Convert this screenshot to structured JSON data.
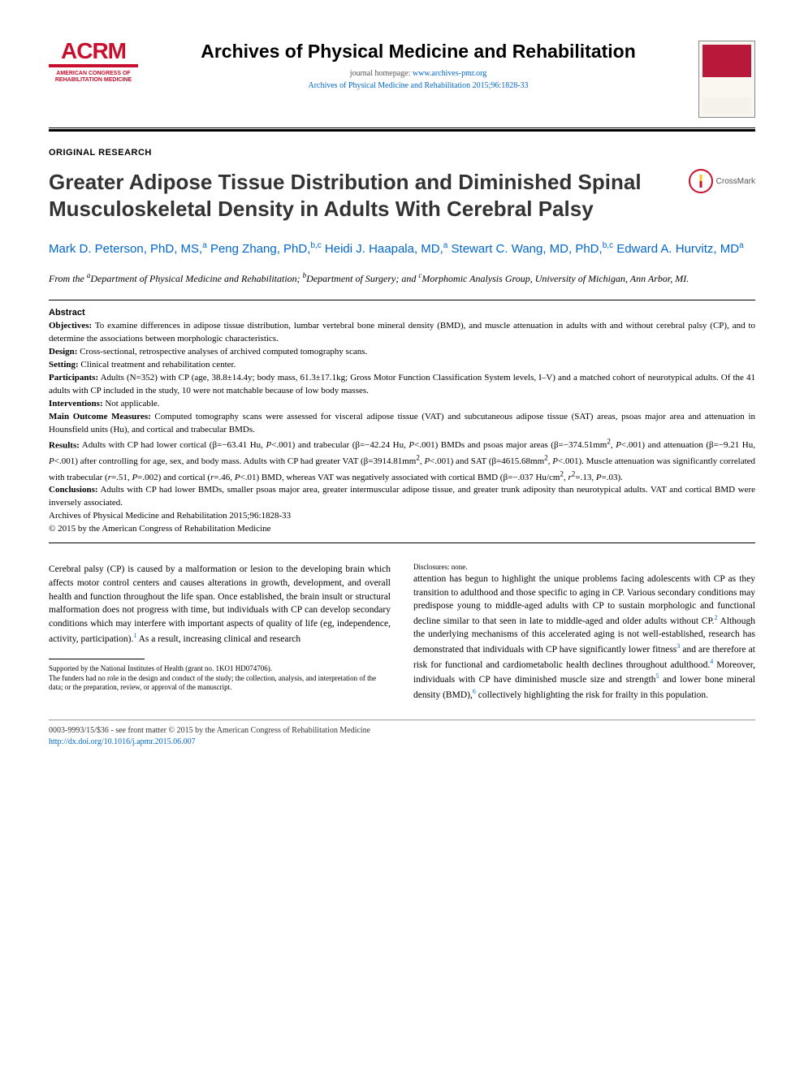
{
  "logo": {
    "mark": "ACRM",
    "sub1": "AMERICAN CONGRESS OF",
    "sub2": "REHABILITATION MEDICINE"
  },
  "journal": {
    "title": "Archives of Physical Medicine and Rehabilitation",
    "homepage_label": "journal homepage: ",
    "homepage_url": "www.archives-pmr.org",
    "citation": "Archives of Physical Medicine and Rehabilitation 2015;96:1828-33"
  },
  "article": {
    "type": "ORIGINAL RESEARCH",
    "title": "Greater Adipose Tissue Distribution and Diminished Spinal Musculoskeletal Density in Adults With Cerebral Palsy",
    "crossmark": "CrossMark"
  },
  "authors_html": "Mark D. Peterson, PhD, MS,<span class=\"sup\">a</span> Peng Zhang, PhD,<span class=\"sup\">b,c</span> Heidi J. Haapala, MD,<span class=\"sup\">a</span> Stewart C. Wang, MD, PhD,<span class=\"sup\">b,c</span> Edward A. Hurvitz, MD<span class=\"sup\">a</span>",
  "affiliations_html": "From the <span class=\"sup\">a</span>Department of Physical Medicine and Rehabilitation; <span class=\"sup\">b</span>Department of Surgery; and <span class=\"sup\">c</span>Morphomic Analysis Group, University of Michigan, Ann Arbor, MI.",
  "abstract": {
    "heading": "Abstract",
    "objectives_label": "Objectives:",
    "objectives": " To examine differences in adipose tissue distribution, lumbar vertebral bone mineral density (BMD), and muscle attenuation in adults with and without cerebral palsy (CP), and to determine the associations between morphologic characteristics.",
    "design_label": "Design:",
    "design": " Cross-sectional, retrospective analyses of archived computed tomography scans.",
    "setting_label": "Setting:",
    "setting": " Clinical treatment and rehabilitation center.",
    "participants_label": "Participants:",
    "participants": " Adults (N=352) with CP (age, 38.8±14.4y; body mass, 61.3±17.1kg; Gross Motor Function Classification System levels, I–V) and a matched cohort of neurotypical adults. Of the 41 adults with CP included in the study, 10 were not matchable because of low body masses.",
    "interventions_label": "Interventions:",
    "interventions": " Not applicable.",
    "outcomes_label": "Main Outcome Measures:",
    "outcomes": " Computed tomography scans were assessed for visceral adipose tissue (VAT) and subcutaneous adipose tissue (SAT) areas, psoas major area and attenuation in Hounsfield units (Hu), and cortical and trabecular BMDs.",
    "results_label": "Results:",
    "results_html": " Adults with CP had lower cortical (β=−63.41 Hu, <i>P</i>&lt;.001) and trabecular (β=−42.24 Hu, <i>P</i>&lt;.001) BMDs and psoas major areas (β=−374.51mm<sup>2</sup>, <i>P</i>&lt;.001) and attenuation (β=−9.21 Hu, <i>P</i>&lt;.001) after controlling for age, sex, and body mass. Adults with CP had greater VAT (β=3914.81mm<sup>2</sup>, <i>P</i>&lt;.001) and SAT (β=4615.68mm<sup>2</sup>, <i>P</i>&lt;.001). Muscle attenuation was significantly correlated with trabecular (<i>r</i>=.51, <i>P</i>=.002) and cortical (<i>r</i>=.46, <i>P</i>&lt;.01) BMD, whereas VAT was negatively associated with cortical BMD (β=−.037 Hu/cm<sup>2</sup>, <i>r</i><sup>2</sup>=.13, <i>P</i>=.03).",
    "conclusions_label": "Conclusions:",
    "conclusions": " Adults with CP had lower BMDs, smaller psoas major area, greater intermuscular adipose tissue, and greater trunk adiposity than neurotypical adults. VAT and cortical BMD were inversely associated.",
    "foot_citation": "Archives of Physical Medicine and Rehabilitation 2015;96:1828-33",
    "copyright": "© 2015 by the American Congress of Rehabilitation Medicine"
  },
  "body": {
    "col1_html": "Cerebral palsy (CP) is caused by a malformation or lesion to the developing brain which affects motor control centers and causes alterations in growth, development, and overall health and function throughout the life span. Once established, the brain insult or structural malformation does not progress with time, but individuals with CP can develop secondary conditions which may interfere with important aspects of quality of life (eg, independence, activity, participation).<span class=\"ref-sup\">1</span> As a result, increasing clinical and research",
    "col2_html": "attention has begun to highlight the unique problems facing adolescents with CP as they transition to adulthood and those specific to aging in CP. Various secondary conditions may predispose young to middle-aged adults with CP to sustain morphologic and functional decline similar to that seen in late to middle-aged and older adults without CP.<span class=\"ref-sup\">2</span> Although the underlying mechanisms of this accelerated aging is not well-established, research has demonstrated that individuals with CP have significantly lower fitness<span class=\"ref-sup\">3</span> and are therefore at risk for functional and cardiometabolic health declines throughout adulthood.<span class=\"ref-sup\">4</span> Moreover, individuals with CP have diminished muscle size and strength<span class=\"ref-sup\">5</span> and lower bone mineral density (BMD),<span class=\"ref-sup\">6</span> collectively highlighting the risk for frailty in this population."
  },
  "funding": {
    "line1": "Supported by the National Institutes of Health (grant no. 1KO1 HD074706).",
    "line2": "The funders had no role in the design and conduct of the study; the collection, analysis, and interpretation of the data; or the preparation, review, or approval of the manuscript.",
    "line3": "Disclosures: none."
  },
  "footer": {
    "front_matter": "0003-9993/15/$36 - see front matter © 2015 by the American Congress of Rehabilitation Medicine",
    "doi": "http://dx.doi.org/10.1016/j.apmr.2015.06.007"
  },
  "colors": {
    "brand_red": "#c8102e",
    "link_blue": "#0066cc",
    "text": "#000000",
    "muted": "#555555"
  }
}
